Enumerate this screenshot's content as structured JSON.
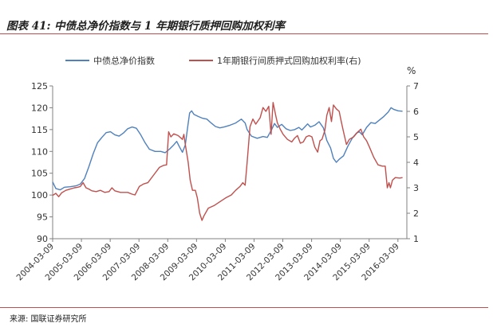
{
  "header": {
    "title": "图表 41: 中债总净价指数与 1 年期银行质押回购加权利率"
  },
  "footer": {
    "source": "来源: 国联证券研究所"
  },
  "chart_data": {
    "type": "line",
    "title": "",
    "legend_position": "top",
    "x_tick_labels": [
      "2004-03-09",
      "2005-03-09",
      "2006-03-09",
      "2007-03-09",
      "2008-03-09",
      "2009-03-09",
      "2010-03-09",
      "2011-03-09",
      "2012-03-09",
      "2013-03-09",
      "2014-03-09",
      "2015-03-09",
      "2016-03-09"
    ],
    "left_axis": {
      "ylim": [
        90,
        125
      ],
      "ticks": [
        90,
        95,
        100,
        105,
        110,
        115,
        120,
        125
      ],
      "label": ""
    },
    "right_axis": {
      "ylim": [
        1,
        7
      ],
      "ticks": [
        1,
        2,
        3,
        4,
        5,
        6,
        7
      ],
      "label": "%"
    },
    "grid": false,
    "series": [
      {
        "name": "中债总净价指数",
        "axis": "left",
        "color": "#4f81bd",
        "points": [
          [
            2004.19,
            103.0
          ],
          [
            2004.3,
            101.5
          ],
          [
            2004.45,
            101.2
          ],
          [
            2004.6,
            101.8
          ],
          [
            2004.8,
            101.9
          ],
          [
            2005.0,
            102.1
          ],
          [
            2005.15,
            102.5
          ],
          [
            2005.3,
            103.8
          ],
          [
            2005.45,
            106.5
          ],
          [
            2005.6,
            109.5
          ],
          [
            2005.75,
            112.0
          ],
          [
            2005.9,
            113.2
          ],
          [
            2006.05,
            114.3
          ],
          [
            2006.2,
            114.5
          ],
          [
            2006.35,
            113.8
          ],
          [
            2006.5,
            113.5
          ],
          [
            2006.65,
            114.2
          ],
          [
            2006.8,
            115.2
          ],
          [
            2006.95,
            115.6
          ],
          [
            2007.1,
            115.3
          ],
          [
            2007.25,
            113.8
          ],
          [
            2007.4,
            112.0
          ],
          [
            2007.55,
            110.5
          ],
          [
            2007.75,
            110.0
          ],
          [
            2007.95,
            110.0
          ],
          [
            2008.1,
            109.7
          ],
          [
            2008.25,
            110.5
          ],
          [
            2008.4,
            111.5
          ],
          [
            2008.5,
            112.3
          ],
          [
            2008.6,
            111.0
          ],
          [
            2008.7,
            109.8
          ],
          [
            2008.8,
            111.5
          ],
          [
            2008.88,
            115.5
          ],
          [
            2008.95,
            118.8
          ],
          [
            2009.02,
            119.3
          ],
          [
            2009.1,
            118.5
          ],
          [
            2009.25,
            118.0
          ],
          [
            2009.4,
            117.6
          ],
          [
            2009.55,
            117.4
          ],
          [
            2009.7,
            116.5
          ],
          [
            2009.85,
            115.7
          ],
          [
            2010.0,
            115.4
          ],
          [
            2010.15,
            115.6
          ],
          [
            2010.35,
            116.0
          ],
          [
            2010.55,
            116.5
          ],
          [
            2010.75,
            117.4
          ],
          [
            2010.88,
            116.5
          ],
          [
            2010.95,
            115.0
          ],
          [
            2011.1,
            113.5
          ],
          [
            2011.3,
            113.0
          ],
          [
            2011.5,
            113.4
          ],
          [
            2011.65,
            113.2
          ],
          [
            2011.8,
            115.0
          ],
          [
            2011.9,
            116.4
          ],
          [
            2012.0,
            115.5
          ],
          [
            2012.15,
            116.2
          ],
          [
            2012.3,
            115.2
          ],
          [
            2012.45,
            114.8
          ],
          [
            2012.6,
            115.0
          ],
          [
            2012.75,
            115.5
          ],
          [
            2012.85,
            114.9
          ],
          [
            2012.95,
            115.6
          ],
          [
            2013.05,
            116.3
          ],
          [
            2013.15,
            115.6
          ],
          [
            2013.3,
            116.0
          ],
          [
            2013.45,
            116.8
          ],
          [
            2013.6,
            115.4
          ],
          [
            2013.72,
            112.5
          ],
          [
            2013.85,
            110.8
          ],
          [
            2013.95,
            108.4
          ],
          [
            2014.05,
            107.5
          ],
          [
            2014.15,
            108.2
          ],
          [
            2014.3,
            109.0
          ],
          [
            2014.45,
            111.2
          ],
          [
            2014.6,
            113.0
          ],
          [
            2014.75,
            114.2
          ],
          [
            2014.85,
            114.5
          ],
          [
            2014.95,
            113.8
          ],
          [
            2015.1,
            115.5
          ],
          [
            2015.25,
            116.6
          ],
          [
            2015.4,
            116.4
          ],
          [
            2015.55,
            117.2
          ],
          [
            2015.7,
            118.0
          ],
          [
            2015.85,
            119.0
          ],
          [
            2015.95,
            120.0
          ],
          [
            2016.05,
            119.6
          ],
          [
            2016.2,
            119.3
          ],
          [
            2016.35,
            119.2
          ]
        ]
      },
      {
        "name": "1年期银行间质押式回购加权利率(右)",
        "axis": "right",
        "color": "#c0504d",
        "points": [
          [
            2004.19,
            2.7
          ],
          [
            2004.3,
            2.78
          ],
          [
            2004.4,
            2.65
          ],
          [
            2004.5,
            2.8
          ],
          [
            2004.65,
            2.9
          ],
          [
            2004.8,
            2.95
          ],
          [
            2004.95,
            3.0
          ],
          [
            2005.05,
            3.02
          ],
          [
            2005.15,
            3.05
          ],
          [
            2005.25,
            3.2
          ],
          [
            2005.35,
            3.0
          ],
          [
            2005.45,
            2.95
          ],
          [
            2005.55,
            2.88
          ],
          [
            2005.7,
            2.85
          ],
          [
            2005.85,
            2.9
          ],
          [
            2006.0,
            2.82
          ],
          [
            2006.15,
            2.85
          ],
          [
            2006.25,
            3.0
          ],
          [
            2006.35,
            2.88
          ],
          [
            2006.55,
            2.82
          ],
          [
            2006.8,
            2.82
          ],
          [
            2006.95,
            2.75
          ],
          [
            2007.05,
            2.72
          ],
          [
            2007.2,
            3.05
          ],
          [
            2007.35,
            3.15
          ],
          [
            2007.5,
            3.2
          ],
          [
            2007.7,
            3.5
          ],
          [
            2007.9,
            3.8
          ],
          [
            2008.05,
            3.88
          ],
          [
            2008.15,
            3.9
          ],
          [
            2008.22,
            5.2
          ],
          [
            2008.3,
            5.0
          ],
          [
            2008.4,
            5.12
          ],
          [
            2008.55,
            5.05
          ],
          [
            2008.7,
            4.9
          ],
          [
            2008.75,
            5.1
          ],
          [
            2008.8,
            4.7
          ],
          [
            2008.9,
            4.0
          ],
          [
            2008.97,
            3.3
          ],
          [
            2009.05,
            2.9
          ],
          [
            2009.15,
            2.9
          ],
          [
            2009.22,
            2.6
          ],
          [
            2009.3,
            2.0
          ],
          [
            2009.38,
            1.72
          ],
          [
            2009.45,
            1.9
          ],
          [
            2009.6,
            2.2
          ],
          [
            2009.8,
            2.3
          ],
          [
            2010.0,
            2.45
          ],
          [
            2010.2,
            2.6
          ],
          [
            2010.4,
            2.72
          ],
          [
            2010.55,
            2.9
          ],
          [
            2010.7,
            3.05
          ],
          [
            2010.8,
            3.2
          ],
          [
            2010.88,
            3.1
          ],
          [
            2010.95,
            4.0
          ],
          [
            2011.05,
            5.4
          ],
          [
            2011.15,
            5.7
          ],
          [
            2011.25,
            5.5
          ],
          [
            2011.4,
            5.75
          ],
          [
            2011.5,
            6.15
          ],
          [
            2011.6,
            6.0
          ],
          [
            2011.7,
            6.2
          ],
          [
            2011.78,
            5.1
          ],
          [
            2011.85,
            6.35
          ],
          [
            2011.95,
            5.8
          ],
          [
            2012.0,
            5.55
          ],
          [
            2012.1,
            5.3
          ],
          [
            2012.2,
            5.1
          ],
          [
            2012.35,
            4.9
          ],
          [
            2012.5,
            4.8
          ],
          [
            2012.6,
            4.95
          ],
          [
            2012.7,
            5.05
          ],
          [
            2012.8,
            4.75
          ],
          [
            2012.9,
            4.8
          ],
          [
            2013.0,
            5.0
          ],
          [
            2013.1,
            5.05
          ],
          [
            2013.2,
            5.0
          ],
          [
            2013.3,
            4.6
          ],
          [
            2013.4,
            4.4
          ],
          [
            2013.48,
            4.85
          ],
          [
            2013.55,
            4.9
          ],
          [
            2013.65,
            5.25
          ],
          [
            2013.72,
            5.85
          ],
          [
            2013.8,
            6.15
          ],
          [
            2013.88,
            5.6
          ],
          [
            2013.95,
            6.25
          ],
          [
            2014.05,
            6.1
          ],
          [
            2014.15,
            6.0
          ],
          [
            2014.22,
            5.6
          ],
          [
            2014.3,
            5.2
          ],
          [
            2014.4,
            4.7
          ],
          [
            2014.5,
            4.9
          ],
          [
            2014.65,
            5.0
          ],
          [
            2014.8,
            5.2
          ],
          [
            2014.9,
            5.3
          ],
          [
            2015.0,
            5.0
          ],
          [
            2015.1,
            4.85
          ],
          [
            2015.2,
            4.6
          ],
          [
            2015.35,
            4.2
          ],
          [
            2015.5,
            3.9
          ],
          [
            2015.65,
            3.85
          ],
          [
            2015.75,
            3.85
          ],
          [
            2015.82,
            3.0
          ],
          [
            2015.88,
            3.2
          ],
          [
            2015.93,
            3.0
          ],
          [
            2016.0,
            3.3
          ],
          [
            2016.1,
            3.4
          ],
          [
            2016.25,
            3.38
          ],
          [
            2016.35,
            3.4
          ]
        ]
      }
    ]
  }
}
